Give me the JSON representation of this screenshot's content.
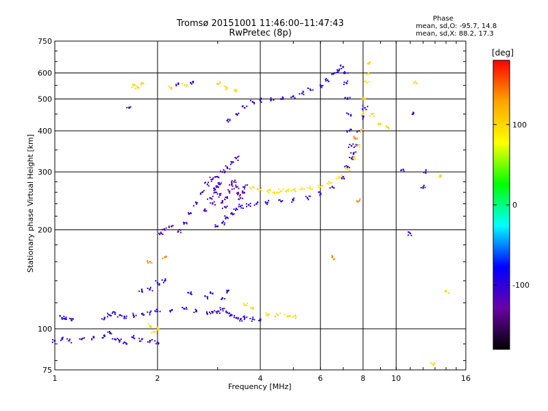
{
  "chart_data": {
    "type": "scatter",
    "title": "Tromsø 20151001 11:46:00–11:47:43",
    "subtitle": "RwPretec (8p)",
    "xlabel": "Frequency [MHz]",
    "ylabel": "Stationary phase Virtual Height [km]",
    "x_scale": "log",
    "y_scale": "log",
    "xlim": [
      1,
      16
    ],
    "ylim": [
      75,
      750
    ],
    "x_ticks": [
      1,
      2,
      4,
      6,
      8,
      10,
      16
    ],
    "y_ticks": [
      75,
      100,
      200,
      300,
      400,
      500,
      600,
      750
    ],
    "grid": true,
    "stats": {
      "heading": "Phase",
      "line_o": "mean, sd,O: -95.7, 14.8",
      "line_x": "mean, sd,X:  88.2, 17.3"
    },
    "colorbar": {
      "label": "[deg]",
      "range": [
        -180,
        180
      ],
      "ticks": [
        100,
        0,
        -100
      ],
      "colors": [
        "#000000",
        "#6a00a8",
        "#0000ff",
        "#00ffff",
        "#00ff00",
        "#ffff00",
        "#ffa500",
        "#ff0000"
      ]
    },
    "traces": [
      {
        "name": "",
        "phase": -100,
        "points": [
          [
            1.0,
            92
          ],
          [
            1.05,
            93
          ],
          [
            1.1,
            92
          ],
          [
            1.2,
            93
          ],
          [
            1.3,
            94
          ],
          [
            1.4,
            95
          ],
          [
            1.45,
            97
          ],
          [
            1.5,
            93
          ],
          [
            1.55,
            92
          ],
          [
            1.6,
            91
          ],
          [
            1.7,
            94
          ],
          [
            1.8,
            93
          ],
          [
            1.9,
            92
          ],
          [
            2.0,
            91
          ]
        ]
      },
      {
        "name": "",
        "phase": -100,
        "points": [
          [
            1.05,
            108
          ],
          [
            1.08,
            107
          ],
          [
            1.12,
            106
          ],
          [
            1.4,
            108
          ],
          [
            1.45,
            110
          ],
          [
            1.5,
            112
          ],
          [
            1.55,
            110
          ],
          [
            1.6,
            109
          ],
          [
            1.7,
            110
          ],
          [
            1.8,
            111
          ],
          [
            1.9,
            112
          ],
          [
            2.0,
            113
          ],
          [
            2.2,
            114
          ],
          [
            2.4,
            115
          ],
          [
            2.6,
            113
          ],
          [
            2.8,
            111
          ],
          [
            2.9,
            112
          ],
          [
            3.0,
            113
          ],
          [
            3.1,
            115
          ],
          [
            3.2,
            112
          ],
          [
            3.3,
            110
          ],
          [
            3.4,
            108
          ],
          [
            3.5,
            107
          ],
          [
            3.6,
            108
          ],
          [
            3.8,
            107
          ],
          [
            4.0,
            106
          ]
        ]
      },
      {
        "name": "",
        "phase": -90,
        "points": [
          [
            1.8,
            130
          ],
          [
            1.9,
            132
          ],
          [
            2.0,
            138
          ],
          [
            2.1,
            140
          ],
          [
            2.5,
            128
          ],
          [
            2.8,
            125
          ],
          [
            2.9,
            128
          ],
          [
            3.1,
            124
          ],
          [
            3.2,
            130
          ]
        ]
      },
      {
        "name": "",
        "phase": -110,
        "points": [
          [
            2.05,
            195
          ],
          [
            2.1,
            200
          ],
          [
            2.2,
            205
          ],
          [
            2.3,
            198
          ],
          [
            2.4,
            210
          ],
          [
            2.5,
            225
          ],
          [
            2.6,
            240
          ],
          [
            2.7,
            260
          ],
          [
            2.8,
            275
          ],
          [
            2.9,
            285
          ],
          [
            3.0,
            290
          ],
          [
            3.1,
            300
          ],
          [
            3.2,
            310
          ],
          [
            3.3,
            320
          ],
          [
            3.4,
            330
          ],
          [
            2.75,
            230
          ],
          [
            2.85,
            250
          ],
          [
            2.95,
            265
          ],
          [
            3.05,
            275
          ]
        ]
      },
      {
        "name": "",
        "phase": -95,
        "points": [
          [
            3.0,
            205
          ],
          [
            3.1,
            210
          ],
          [
            3.2,
            218
          ],
          [
            3.3,
            225
          ],
          [
            3.4,
            232
          ],
          [
            3.5,
            236
          ],
          [
            3.7,
            238
          ],
          [
            3.9,
            240
          ],
          [
            4.2,
            242
          ],
          [
            4.6,
            244
          ],
          [
            5.0,
            246
          ],
          [
            5.5,
            250
          ],
          [
            6.0,
            258
          ],
          [
            6.5,
            270
          ],
          [
            7.0,
            290
          ],
          [
            7.2,
            310
          ],
          [
            7.4,
            330
          ],
          [
            7.6,
            360
          ],
          [
            7.8,
            400
          ],
          [
            8.0,
            440
          ],
          [
            8.1,
            470
          ]
        ]
      },
      {
        "name": "",
        "phase": -120,
        "points": [
          [
            2.9,
            240
          ],
          [
            2.95,
            260
          ],
          [
            3.0,
            270
          ],
          [
            3.05,
            255
          ],
          [
            3.1,
            245
          ],
          [
            3.15,
            235
          ],
          [
            3.2,
            250
          ],
          [
            3.25,
            262
          ],
          [
            3.3,
            275
          ],
          [
            3.35,
            280
          ],
          [
            3.4,
            270
          ],
          [
            3.45,
            258
          ],
          [
            3.5,
            250
          ],
          [
            3.55,
            262
          ],
          [
            3.6,
            270
          ]
        ]
      },
      {
        "name": "",
        "phase": 95,
        "points": [
          [
            3.8,
            270
          ],
          [
            4.0,
            265
          ],
          [
            4.2,
            262
          ],
          [
            4.4,
            260
          ],
          [
            4.6,
            262
          ],
          [
            4.8,
            264
          ],
          [
            5.0,
            265
          ],
          [
            5.3,
            266
          ],
          [
            5.6,
            268
          ],
          [
            6.0,
            270
          ],
          [
            6.4,
            278
          ],
          [
            6.8,
            290
          ],
          [
            7.2,
            305
          ],
          [
            7.5,
            330
          ],
          [
            7.7,
            360
          ],
          [
            7.9,
            400
          ],
          [
            8.0,
            450
          ],
          [
            8.1,
            500
          ],
          [
            8.2,
            560
          ],
          [
            8.3,
            600
          ]
        ]
      },
      {
        "name": "",
        "phase": -100,
        "points": [
          [
            3.2,
            430
          ],
          [
            3.4,
            450
          ],
          [
            3.6,
            470
          ],
          [
            3.8,
            490
          ],
          [
            4.0,
            495
          ],
          [
            4.3,
            498
          ],
          [
            4.6,
            500
          ],
          [
            5.0,
            510
          ],
          [
            5.3,
            520
          ],
          [
            5.6,
            535
          ],
          [
            6.0,
            550
          ],
          [
            6.3,
            570
          ],
          [
            6.6,
            600
          ],
          [
            6.8,
            610
          ],
          [
            7.0,
            625
          ],
          [
            7.1,
            600
          ],
          [
            7.15,
            560
          ],
          [
            7.2,
            500
          ],
          [
            7.25,
            450
          ],
          [
            7.3,
            400
          ],
          [
            7.4,
            360
          ],
          [
            7.5,
            340
          ]
        ]
      },
      {
        "name": "",
        "phase": 100,
        "points": [
          [
            1.7,
            550
          ],
          [
            1.75,
            540
          ],
          [
            1.8,
            560
          ],
          [
            2.2,
            540
          ],
          [
            2.4,
            550
          ],
          [
            3.0,
            555
          ],
          [
            3.2,
            540
          ],
          [
            3.4,
            530
          ],
          [
            8.3,
            640
          ],
          [
            8.5,
            450
          ],
          [
            9.0,
            420
          ],
          [
            9.5,
            410
          ],
          [
            11.3,
            560
          ],
          [
            13.5,
            290
          ],
          [
            14.0,
            130
          ]
        ]
      },
      {
        "name": "",
        "phase": -100,
        "points": [
          [
            1.65,
            470
          ],
          [
            2.3,
            555
          ],
          [
            2.5,
            560
          ],
          [
            11.2,
            450
          ],
          [
            11.0,
            195
          ],
          [
            12.2,
            300
          ],
          [
            10.5,
            305
          ],
          [
            12.0,
            270
          ]
        ]
      },
      {
        "name": "",
        "phase": 100,
        "points": [
          [
            3.6,
            118
          ],
          [
            3.8,
            115
          ],
          [
            4.2,
            110
          ],
          [
            4.5,
            110
          ],
          [
            4.8,
            109
          ],
          [
            5.0,
            109
          ],
          [
            2.0,
            100
          ],
          [
            1.95,
            98
          ],
          [
            1.9,
            102
          ],
          [
            12.8,
            78
          ]
        ]
      },
      {
        "name": "",
        "phase": 140,
        "points": [
          [
            1.9,
            160
          ],
          [
            2.1,
            165
          ],
          [
            6.5,
            165
          ],
          [
            7.8,
            245
          ],
          [
            7.6,
            380
          ]
        ]
      }
    ]
  }
}
